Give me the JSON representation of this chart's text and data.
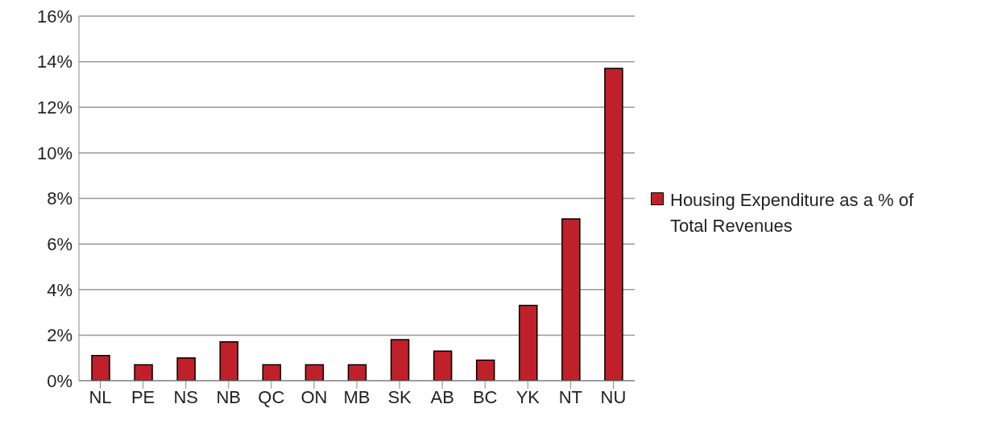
{
  "chart_data": {
    "type": "bar",
    "categories": [
      "NL",
      "PE",
      "NS",
      "NB",
      "QC",
      "ON",
      "MB",
      "SK",
      "AB",
      "BC",
      "YK",
      "NT",
      "NU"
    ],
    "series": [
      {
        "name": "Housing Expenditure as a % of Total Revenues",
        "color": "#c0202a",
        "values": [
          1.1,
          0.7,
          1.0,
          1.7,
          0.7,
          0.7,
          0.7,
          1.8,
          1.3,
          0.9,
          3.3,
          7.1,
          13.7
        ]
      }
    ],
    "ylim": [
      0,
      16
    ],
    "yticks": [
      {
        "value": 0,
        "label": "0%"
      },
      {
        "value": 2,
        "label": "2%"
      },
      {
        "value": 4,
        "label": "4%"
      },
      {
        "value": 6,
        "label": "6%"
      },
      {
        "value": 8,
        "label": "8%"
      },
      {
        "value": 10,
        "label": "10%"
      },
      {
        "value": 12,
        "label": "12%"
      },
      {
        "value": 14,
        "label": "14%"
      },
      {
        "value": 16,
        "label": "16%"
      }
    ],
    "grid": "y",
    "legend": "right"
  }
}
